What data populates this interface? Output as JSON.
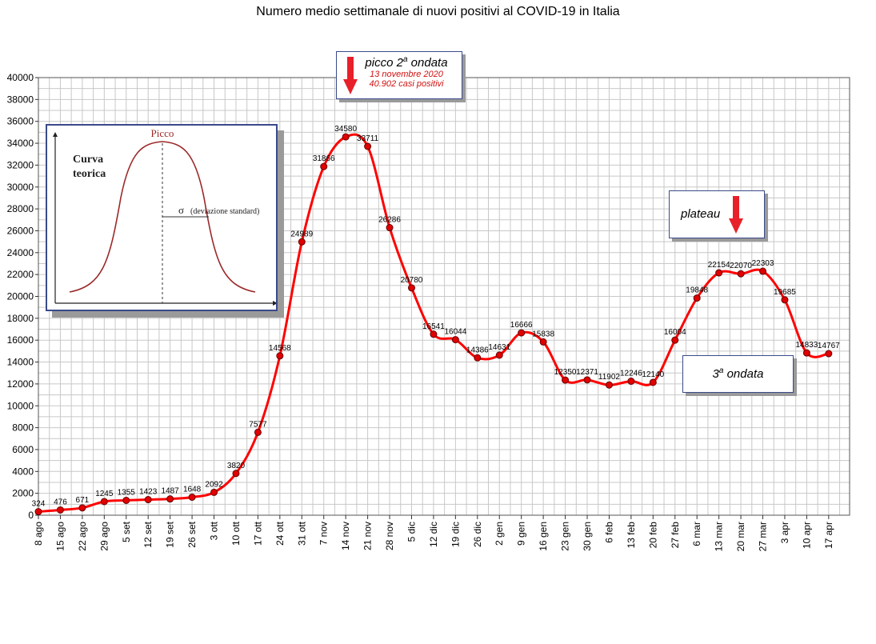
{
  "title": "Numero medio settimanale di nuovi positivi al COVID-19 in Italia",
  "annotations": {
    "peak_title": "picco 2",
    "peak_title_sup": "a",
    "peak_title_rest": " ondata",
    "peak_date": "13 novembre 2020",
    "peak_cases": "40.902 casi positivi",
    "plateau": "plateau",
    "third_wave": "3",
    "third_wave_sup": "a",
    "third_wave_rest": " ondata"
  },
  "inset": {
    "peak_label": "Picco",
    "curve_label_1": "Curva",
    "curve_label_2": "teorica",
    "sigma_symbol": "σ",
    "sigma_label": "(deviazione standard)"
  },
  "colors": {
    "line": "#ff0000",
    "marker": "#e00000",
    "grid": "#c8c8c8",
    "inset_curve": "#9b2a2a",
    "arrow": "#e8202a"
  },
  "chart_data": {
    "type": "line",
    "title": "Numero medio settimanale di nuovi positivi al COVID-19 in Italia",
    "xlabel": "",
    "ylabel": "",
    "ylim": [
      0,
      40000
    ],
    "yticks": [
      0,
      2000,
      4000,
      6000,
      8000,
      10000,
      12000,
      14000,
      16000,
      18000,
      20000,
      22000,
      24000,
      26000,
      28000,
      30000,
      32000,
      34000,
      36000,
      38000,
      40000
    ],
    "grid": true,
    "categories": [
      "8 ago",
      "15 ago",
      "22 ago",
      "29 ago",
      "5 set",
      "12 set",
      "19 set",
      "26 set",
      "3 ott",
      "10 ott",
      "17 ott",
      "24 ott",
      "31 ott",
      "7 nov",
      "14 nov",
      "21 nov",
      "28 nov",
      "5 dic",
      "12 dic",
      "19 dic",
      "26 dic",
      "2 gen",
      "9 gen",
      "16 gen",
      "23 gen",
      "30 gen",
      "6 feb",
      "13 feb",
      "20 feb",
      "27 feb",
      "6 mar",
      "13 mar",
      "20 mar",
      "27 mar",
      "3 apr",
      "10 apr",
      "17 apr"
    ],
    "series": [
      {
        "values": [
          324,
          476,
          671,
          1245,
          1355,
          1423,
          1487,
          1648,
          2092,
          3820,
          7577,
          14568,
          24989,
          31866,
          34580,
          33711,
          26286,
          20780,
          16541,
          16044,
          14386,
          14631,
          16666,
          15838,
          12350,
          12371,
          11902,
          12246,
          12140,
          16004,
          19848,
          22154,
          22070,
          22303,
          19685,
          14833,
          14767
        ]
      }
    ]
  }
}
